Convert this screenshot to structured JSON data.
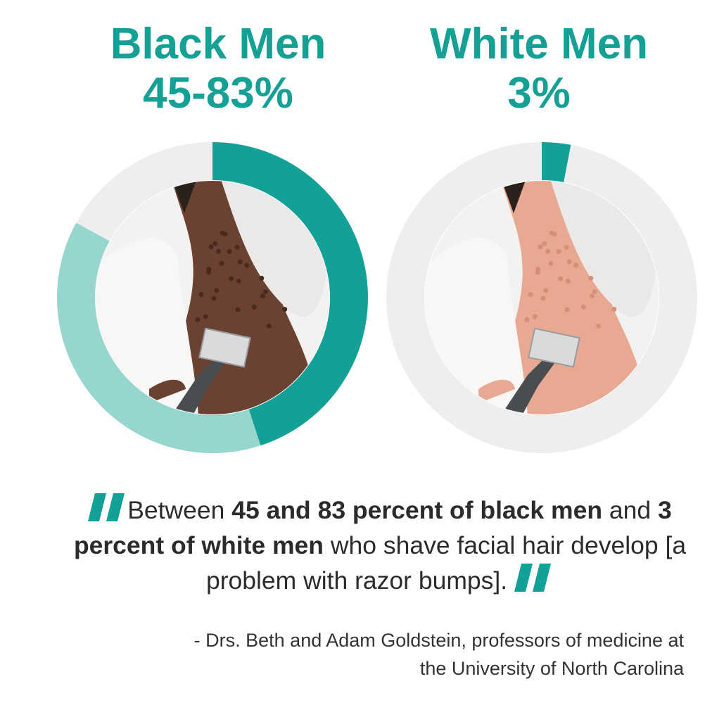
{
  "colors": {
    "accent": "#13a096",
    "range": "#97d5cf",
    "track": "#eeeeee",
    "text": "#2b2b2b"
  },
  "chart_data": [
    {
      "type": "pie",
      "title": "Black Men",
      "label": "45-83%",
      "values": [
        45,
        38,
        17
      ],
      "segments": [
        "low estimate",
        "range to high estimate",
        "remainder"
      ],
      "range": [
        45,
        83
      ]
    },
    {
      "type": "pie",
      "title": "White Men",
      "label": "3%",
      "values": [
        3,
        97
      ],
      "segments": [
        "affected",
        "remainder"
      ]
    }
  ],
  "quote": {
    "p1": "Between ",
    "b1": "45 and 83 percent of black men",
    "p2": " and ",
    "b2": "3 percent of white men",
    "p3": " who shave facial hair develop [a problem with razor bumps].",
    "icon": "quote-mark-icon"
  },
  "attribution": {
    "line1": "- Drs. Beth and Adam Goldstein, professors of medicine at",
    "line2": "the University of North Carolina"
  }
}
